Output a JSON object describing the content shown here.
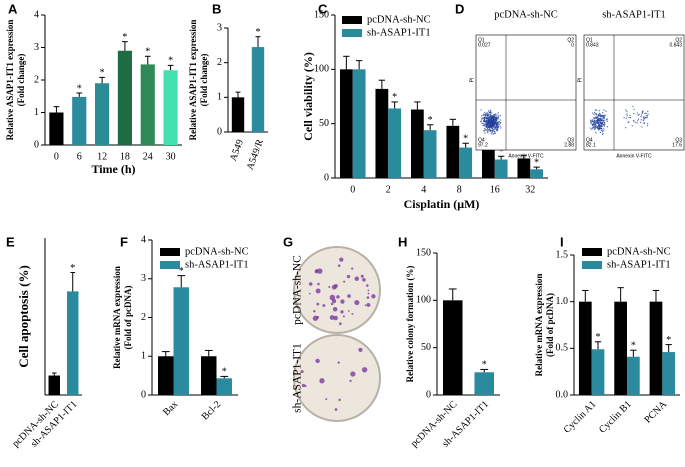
{
  "chart_data": [
    {
      "type": "bar",
      "panel": "A",
      "categories": [
        "0",
        "6",
        "12",
        "18",
        "24",
        "30"
      ],
      "values": [
        1.0,
        1.48,
        1.9,
        2.9,
        2.48,
        2.3
      ],
      "errors": [
        0.18,
        0.12,
        0.18,
        0.28,
        0.25,
        0.15
      ],
      "colors": [
        "#000000",
        "#2a8a9e",
        "#2b8c93",
        "#1f6b45",
        "#2e8b57",
        "#45e0b0"
      ],
      "significant": [
        false,
        true,
        true,
        true,
        true,
        true
      ],
      "marker": "*",
      "ylabel": [
        "Relative ASAP1-IT1 expression",
        "(Fold change)"
      ],
      "xlabel": "Time (h)",
      "ylim": [
        0,
        4
      ],
      "yticks": [
        0,
        1,
        2,
        3,
        4
      ]
    },
    {
      "type": "bar",
      "panel": "B",
      "categories": [
        "A549",
        "A549/R"
      ],
      "values": [
        1.0,
        2.45
      ],
      "errors": [
        0.15,
        0.3
      ],
      "colors": [
        "#000000",
        "#2a8a9e"
      ],
      "significant": [
        false,
        true
      ],
      "marker": "*",
      "ylabel": [
        "Relative ASAP1-IT1 expression",
        "(Fold change)"
      ],
      "ylim": [
        0,
        3
      ],
      "yticks": [
        0,
        1,
        2,
        3
      ]
    },
    {
      "type": "grouped-bar",
      "panel": "C",
      "categories": [
        "0",
        "2",
        "4",
        "8",
        "16",
        "32"
      ],
      "series": [
        {
          "name": "pcDNA-sh-NC",
          "color": "#000000",
          "values": [
            100,
            82,
            63,
            48,
            35,
            18
          ],
          "errors": [
            12,
            8,
            7,
            6,
            4,
            3
          ],
          "significant": [
            false,
            false,
            false,
            false,
            false,
            false
          ]
        },
        {
          "name": "sh-ASAP1-IT1",
          "color": "#2a8a9e",
          "values": [
            100,
            64,
            44,
            28,
            17,
            8
          ],
          "errors": [
            8,
            6,
            5,
            4,
            3,
            2
          ],
          "significant": [
            false,
            true,
            true,
            true,
            true,
            true
          ]
        }
      ],
      "marker": "*",
      "ylabel": [
        "Cell viability (%)"
      ],
      "xlabel": "Cisplatin (μM)",
      "ylim": [
        0,
        150
      ],
      "yticks": [
        0,
        50,
        100,
        150
      ]
    },
    {
      "type": "bar",
      "panel": "E",
      "categories": [
        "pcDNA-sh-NC",
        "sh-ASAP1-IT1"
      ],
      "values": [
        3.1,
        16.5
      ],
      "errors": [
        0.4,
        3.0
      ],
      "colors": [
        "#000000",
        "#2a8a9e"
      ],
      "significant": [
        false,
        true
      ],
      "marker": "*",
      "ylabel": [
        "Cell apoptosis (%)"
      ],
      "ylim": [
        0,
        25
      ]
    },
    {
      "type": "grouped-bar",
      "panel": "F",
      "categories": [
        "Bax",
        "Bcl-2"
      ],
      "series": [
        {
          "name": "pcDNA-sh-NC",
          "color": "#000000",
          "values": [
            1.0,
            1.0
          ],
          "errors": [
            0.12,
            0.15
          ],
          "significant": [
            false,
            false
          ]
        },
        {
          "name": "sh-ASAP1-IT1",
          "color": "#2a8a9e",
          "values": [
            2.78,
            0.43
          ],
          "errors": [
            0.3,
            0.05
          ],
          "significant": [
            true,
            true
          ]
        }
      ],
      "marker": "*",
      "ylabel": [
        "Relative mRNA expression",
        "(Fold of pcDNA)"
      ],
      "ylim": [
        0,
        4
      ],
      "yticks": [
        0,
        1,
        2,
        3,
        4
      ]
    },
    {
      "type": "bar",
      "panel": "H",
      "categories": [
        "pcDNA-sh-NC",
        "sh-ASAP1-IT1"
      ],
      "values": [
        100,
        24
      ],
      "errors": [
        12,
        3
      ],
      "colors": [
        "#000000",
        "#2a8a9e"
      ],
      "significant": [
        false,
        true
      ],
      "marker": "*",
      "ylabel": [
        "Relative colony formation (%)"
      ],
      "ylim": [
        0,
        150
      ],
      "yticks": [
        0,
        50,
        100,
        150
      ]
    },
    {
      "type": "grouped-bar",
      "panel": "I",
      "categories": [
        "Cyclin A1",
        "Cyclin B1",
        "PCNA"
      ],
      "series": [
        {
          "name": "pcDNA-sh-NC",
          "color": "#000000",
          "values": [
            1.0,
            1.0,
            1.0
          ],
          "errors": [
            0.12,
            0.15,
            0.12
          ],
          "significant": [
            false,
            false,
            false
          ]
        },
        {
          "name": "sh-ASAP1-IT1",
          "color": "#2a8a9e",
          "values": [
            0.49,
            0.41,
            0.46
          ],
          "errors": [
            0.08,
            0.07,
            0.08
          ],
          "significant": [
            true,
            true,
            true
          ]
        }
      ],
      "marker": "*",
      "ylabel": [
        "Relative mRNA expression",
        "(Fold of pcDNA)"
      ],
      "ylim": [
        0,
        1.5
      ],
      "yticks": [
        {
          "value": 0,
          "label": "0.0"
        },
        {
          "value": 0.5,
          "label": "0.5"
        },
        {
          "value": 1.0,
          "label": "1.0"
        },
        {
          "value": 1.5,
          "label": "1.5"
        }
      ]
    }
  ],
  "flow": {
    "panel": "D",
    "xlabel": "Annexin V-FITC",
    "ylabel": "PI",
    "quadrant_names": [
      "Q1",
      "Q2",
      "Q3",
      "Q4"
    ],
    "plots": [
      {
        "title": "pcDNA-sh-NC",
        "quadrants": [
          0.027,
          0,
          2.88,
          97.2
        ]
      },
      {
        "title": "sh-ASAP1-IT1",
        "quadrants": [
          0.843,
          0.843,
          17.6,
          82.1
        ]
      }
    ]
  },
  "colony": {
    "panel": "G",
    "labels": [
      "pcDNA-sh-NC",
      "sh-ASAP1-IT1"
    ]
  }
}
